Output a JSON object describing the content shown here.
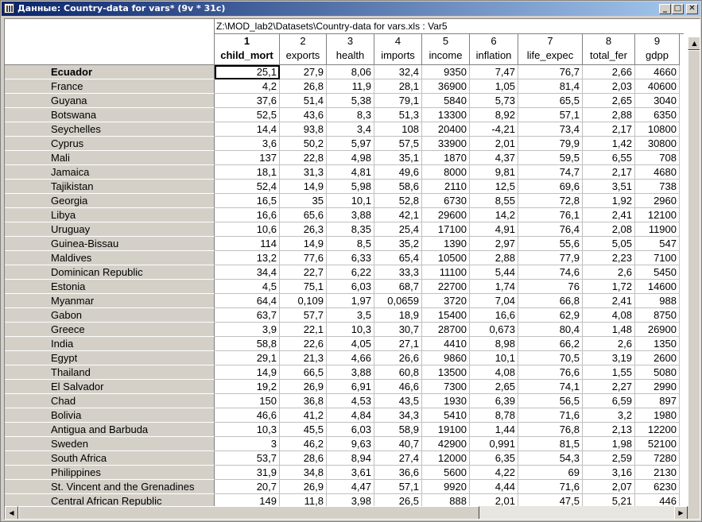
{
  "window": {
    "title": "Данные: Country-data for vars* (9v * 31c)",
    "minimize_glyph": "_",
    "maximize_glyph": "□",
    "close_glyph": "✕",
    "icon": "spreadsheet-icon"
  },
  "sheet": {
    "path": "Z:\\MOD_lab2\\Datasets\\Country-data for vars.xls : Var5",
    "active_column": 1,
    "active_row": 0,
    "columns": [
      {
        "num": "1",
        "name": "child_mort"
      },
      {
        "num": "2",
        "name": "exports"
      },
      {
        "num": "3",
        "name": "health"
      },
      {
        "num": "4",
        "name": "imports"
      },
      {
        "num": "5",
        "name": "income"
      },
      {
        "num": "6",
        "name": "inflation"
      },
      {
        "num": "7",
        "name": "life_expec"
      },
      {
        "num": "8",
        "name": "total_fer"
      },
      {
        "num": "9",
        "name": "gdpp"
      }
    ],
    "rows": [
      {
        "country": "Ecuador",
        "values": [
          "25,1",
          "27,9",
          "8,06",
          "32,4",
          "9350",
          "7,47",
          "76,7",
          "2,66",
          "4660"
        ]
      },
      {
        "country": "France",
        "values": [
          "4,2",
          "26,8",
          "11,9",
          "28,1",
          "36900",
          "1,05",
          "81,4",
          "2,03",
          "40600"
        ]
      },
      {
        "country": "Guyana",
        "values": [
          "37,6",
          "51,4",
          "5,38",
          "79,1",
          "5840",
          "5,73",
          "65,5",
          "2,65",
          "3040"
        ]
      },
      {
        "country": "Botswana",
        "values": [
          "52,5",
          "43,6",
          "8,3",
          "51,3",
          "13300",
          "8,92",
          "57,1",
          "2,88",
          "6350"
        ]
      },
      {
        "country": "Seychelles",
        "values": [
          "14,4",
          "93,8",
          "3,4",
          "108",
          "20400",
          "-4,21",
          "73,4",
          "2,17",
          "10800"
        ]
      },
      {
        "country": "Cyprus",
        "values": [
          "3,6",
          "50,2",
          "5,97",
          "57,5",
          "33900",
          "2,01",
          "79,9",
          "1,42",
          "30800"
        ]
      },
      {
        "country": "Mali",
        "values": [
          "137",
          "22,8",
          "4,98",
          "35,1",
          "1870",
          "4,37",
          "59,5",
          "6,55",
          "708"
        ]
      },
      {
        "country": "Jamaica",
        "values": [
          "18,1",
          "31,3",
          "4,81",
          "49,6",
          "8000",
          "9,81",
          "74,7",
          "2,17",
          "4680"
        ]
      },
      {
        "country": "Tajikistan",
        "values": [
          "52,4",
          "14,9",
          "5,98",
          "58,6",
          "2110",
          "12,5",
          "69,6",
          "3,51",
          "738"
        ]
      },
      {
        "country": "Georgia",
        "values": [
          "16,5",
          "35",
          "10,1",
          "52,8",
          "6730",
          "8,55",
          "72,8",
          "1,92",
          "2960"
        ]
      },
      {
        "country": "Libya",
        "values": [
          "16,6",
          "65,6",
          "3,88",
          "42,1",
          "29600",
          "14,2",
          "76,1",
          "2,41",
          "12100"
        ]
      },
      {
        "country": "Uruguay",
        "values": [
          "10,6",
          "26,3",
          "8,35",
          "25,4",
          "17100",
          "4,91",
          "76,4",
          "2,08",
          "11900"
        ]
      },
      {
        "country": "Guinea-Bissau",
        "values": [
          "114",
          "14,9",
          "8,5",
          "35,2",
          "1390",
          "2,97",
          "55,6",
          "5,05",
          "547"
        ]
      },
      {
        "country": "Maldives",
        "values": [
          "13,2",
          "77,6",
          "6,33",
          "65,4",
          "10500",
          "2,88",
          "77,9",
          "2,23",
          "7100"
        ]
      },
      {
        "country": "Dominican Republic",
        "values": [
          "34,4",
          "22,7",
          "6,22",
          "33,3",
          "11100",
          "5,44",
          "74,6",
          "2,6",
          "5450"
        ]
      },
      {
        "country": "Estonia",
        "values": [
          "4,5",
          "75,1",
          "6,03",
          "68,7",
          "22700",
          "1,74",
          "76",
          "1,72",
          "14600"
        ]
      },
      {
        "country": "Myanmar",
        "values": [
          "64,4",
          "0,109",
          "1,97",
          "0,0659",
          "3720",
          "7,04",
          "66,8",
          "2,41",
          "988"
        ]
      },
      {
        "country": "Gabon",
        "values": [
          "63,7",
          "57,7",
          "3,5",
          "18,9",
          "15400",
          "16,6",
          "62,9",
          "4,08",
          "8750"
        ]
      },
      {
        "country": "Greece",
        "values": [
          "3,9",
          "22,1",
          "10,3",
          "30,7",
          "28700",
          "0,673",
          "80,4",
          "1,48",
          "26900"
        ]
      },
      {
        "country": "India",
        "values": [
          "58,8",
          "22,6",
          "4,05",
          "27,1",
          "4410",
          "8,98",
          "66,2",
          "2,6",
          "1350"
        ]
      },
      {
        "country": "Egypt",
        "values": [
          "29,1",
          "21,3",
          "4,66",
          "26,6",
          "9860",
          "10,1",
          "70,5",
          "3,19",
          "2600"
        ]
      },
      {
        "country": "Thailand",
        "values": [
          "14,9",
          "66,5",
          "3,88",
          "60,8",
          "13500",
          "4,08",
          "76,6",
          "1,55",
          "5080"
        ]
      },
      {
        "country": "El Salvador",
        "values": [
          "19,2",
          "26,9",
          "6,91",
          "46,6",
          "7300",
          "2,65",
          "74,1",
          "2,27",
          "2990"
        ]
      },
      {
        "country": "Chad",
        "values": [
          "150",
          "36,8",
          "4,53",
          "43,5",
          "1930",
          "6,39",
          "56,5",
          "6,59",
          "897"
        ]
      },
      {
        "country": "Bolivia",
        "values": [
          "46,6",
          "41,2",
          "4,84",
          "34,3",
          "5410",
          "8,78",
          "71,6",
          "3,2",
          "1980"
        ]
      },
      {
        "country": "Antigua and Barbuda",
        "values": [
          "10,3",
          "45,5",
          "6,03",
          "58,9",
          "19100",
          "1,44",
          "76,8",
          "2,13",
          "12200"
        ]
      },
      {
        "country": "Sweden",
        "values": [
          "3",
          "46,2",
          "9,63",
          "40,7",
          "42900",
          "0,991",
          "81,5",
          "1,98",
          "52100"
        ]
      },
      {
        "country": "South Africa",
        "values": [
          "53,7",
          "28,6",
          "8,94",
          "27,4",
          "12000",
          "6,35",
          "54,3",
          "2,59",
          "7280"
        ]
      },
      {
        "country": "Philippines",
        "values": [
          "31,9",
          "34,8",
          "3,61",
          "36,6",
          "5600",
          "4,22",
          "69",
          "3,16",
          "2130"
        ]
      },
      {
        "country": "St. Vincent and the Grenadines",
        "values": [
          "20,7",
          "26,9",
          "4,47",
          "57,1",
          "9920",
          "4,44",
          "71,6",
          "2,07",
          "6230"
        ]
      },
      {
        "country": "Central African Republic",
        "values": [
          "149",
          "11,8",
          "3,98",
          "26,5",
          "888",
          "2,01",
          "47,5",
          "5,21",
          "446"
        ]
      }
    ]
  },
  "scrollbars": {
    "up_glyph": "▲",
    "left_glyph": "◀",
    "right_glyph": "▶"
  }
}
